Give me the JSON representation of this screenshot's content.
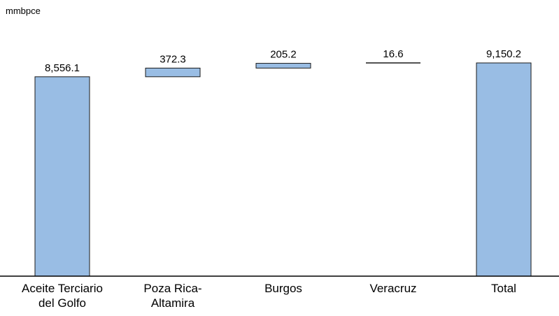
{
  "chart_data": {
    "type": "bar",
    "subtype": "waterfall",
    "unit_label": "mmbpce",
    "categories": [
      [
        "Aceite Terciario",
        "del Golfo"
      ],
      [
        "Poza Rica-",
        "Altamira"
      ],
      [
        "Burgos"
      ],
      [
        "Veracruz"
      ],
      [
        "Total"
      ]
    ],
    "values": [
      8556.1,
      372.3,
      205.2,
      16.6,
      9150.2
    ],
    "value_labels": [
      "8,556.1",
      "372.3",
      "205.2",
      "16.6",
      "9,150.2"
    ],
    "bar_kinds": [
      "absolute",
      "increment",
      "increment",
      "increment",
      "total"
    ],
    "ylim": [
      0,
      9150.2
    ],
    "grid": false,
    "legend": "none",
    "colors": {
      "bar_fill": "#99bde4",
      "bar_stroke": "#1a1a1a",
      "axis": "#000000",
      "text": "#000000"
    }
  }
}
